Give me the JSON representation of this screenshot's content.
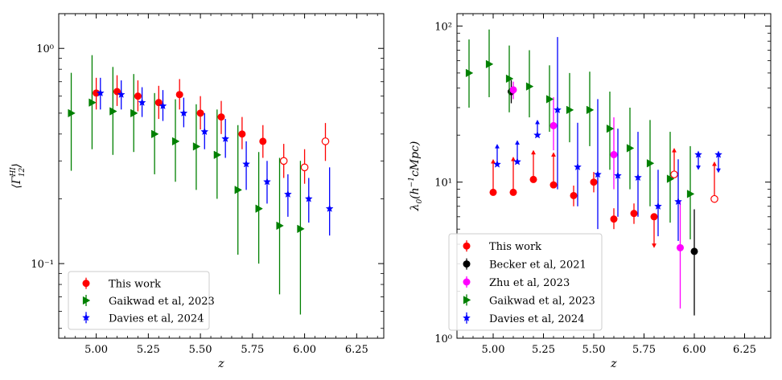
{
  "chart_data": [
    {
      "type": "scatter",
      "panel": "left",
      "title": "",
      "xlabel": "z",
      "ylabel": "⟨Γ₁₂ᴴᴵ⟩",
      "ylabel_parts": {
        "base": "⟨Γ",
        "sup": "HI",
        "sub": "12",
        "close": "⟩"
      },
      "x_scale": "linear",
      "y_scale": "log",
      "xlim": [
        4.82,
        6.38
      ],
      "ylim": [
        0.045,
        1.45
      ],
      "xticks": [
        5.0,
        5.25,
        5.5,
        5.75,
        6.0,
        6.25
      ],
      "xtick_labels": [
        "5.00",
        "5.25",
        "5.50",
        "5.75",
        "6.00",
        "6.25"
      ],
      "ytick_values": [
        0.1,
        1.0
      ],
      "ytick_labels": [
        "10⁻¹",
        "10⁰"
      ],
      "legend_position": "bottom-left",
      "grid": false,
      "series": [
        {
          "name": "This work",
          "color": "#ff0000",
          "marker": "circle",
          "points": [
            {
              "x": 5.0,
              "y": 0.62,
              "lo": 0.52,
              "hi": 0.73
            },
            {
              "x": 5.1,
              "y": 0.63,
              "lo": 0.54,
              "hi": 0.75
            },
            {
              "x": 5.2,
              "y": 0.6,
              "lo": 0.51,
              "hi": 0.71
            },
            {
              "x": 5.3,
              "y": 0.56,
              "lo": 0.47,
              "hi": 0.67
            },
            {
              "x": 5.4,
              "y": 0.61,
              "lo": 0.52,
              "hi": 0.72
            },
            {
              "x": 5.5,
              "y": 0.5,
              "lo": 0.42,
              "hi": 0.6
            },
            {
              "x": 5.6,
              "y": 0.48,
              "lo": 0.4,
              "hi": 0.57
            },
            {
              "x": 5.7,
              "y": 0.4,
              "lo": 0.34,
              "hi": 0.48
            },
            {
              "x": 5.8,
              "y": 0.37,
              "lo": 0.31,
              "hi": 0.44
            },
            {
              "x": 5.9,
              "y": 0.3,
              "lo": 0.25,
              "hi": 0.36,
              "open": true
            },
            {
              "x": 6.0,
              "y": 0.28,
              "lo": 0.235,
              "hi": 0.34,
              "open": true
            },
            {
              "x": 6.1,
              "y": 0.37,
              "lo": 0.3,
              "hi": 0.45,
              "open": true
            }
          ]
        },
        {
          "name": "Gaikwad et al, 2023",
          "color": "#008000",
          "marker": "triangle-right",
          "points": [
            {
              "x": 4.88,
              "y": 0.5,
              "lo": 0.27,
              "hi": 0.77
            },
            {
              "x": 4.98,
              "y": 0.56,
              "lo": 0.34,
              "hi": 0.93
            },
            {
              "x": 5.08,
              "y": 0.51,
              "lo": 0.32,
              "hi": 0.82
            },
            {
              "x": 5.18,
              "y": 0.5,
              "lo": 0.33,
              "hi": 0.76
            },
            {
              "x": 5.28,
              "y": 0.4,
              "lo": 0.26,
              "hi": 0.62
            },
            {
              "x": 5.38,
              "y": 0.37,
              "lo": 0.24,
              "hi": 0.58
            },
            {
              "x": 5.48,
              "y": 0.35,
              "lo": 0.22,
              "hi": 0.55
            },
            {
              "x": 5.58,
              "y": 0.32,
              "lo": 0.2,
              "hi": 0.52
            },
            {
              "x": 5.68,
              "y": 0.22,
              "lo": 0.11,
              "hi": 0.44
            },
            {
              "x": 5.78,
              "y": 0.18,
              "lo": 0.1,
              "hi": 0.33
            },
            {
              "x": 5.88,
              "y": 0.15,
              "lo": 0.072,
              "hi": 0.31
            },
            {
              "x": 5.98,
              "y": 0.145,
              "lo": 0.058,
              "hi": 0.3
            }
          ]
        },
        {
          "name": "Davies et al, 2024",
          "color": "#0000ff",
          "marker": "star",
          "points": [
            {
              "x": 5.02,
              "y": 0.62,
              "lo": 0.52,
              "hi": 0.73
            },
            {
              "x": 5.12,
              "y": 0.61,
              "lo": 0.52,
              "hi": 0.71
            },
            {
              "x": 5.22,
              "y": 0.56,
              "lo": 0.48,
              "hi": 0.66
            },
            {
              "x": 5.32,
              "y": 0.54,
              "lo": 0.46,
              "hi": 0.64
            },
            {
              "x": 5.42,
              "y": 0.5,
              "lo": 0.43,
              "hi": 0.59
            },
            {
              "x": 5.52,
              "y": 0.41,
              "lo": 0.34,
              "hi": 0.5
            },
            {
              "x": 5.62,
              "y": 0.38,
              "lo": 0.31,
              "hi": 0.47
            },
            {
              "x": 5.72,
              "y": 0.29,
              "lo": 0.22,
              "hi": 0.37
            },
            {
              "x": 5.82,
              "y": 0.24,
              "lo": 0.19,
              "hi": 0.3
            },
            {
              "x": 5.92,
              "y": 0.21,
              "lo": 0.165,
              "hi": 0.26
            },
            {
              "x": 6.02,
              "y": 0.2,
              "lo": 0.155,
              "hi": 0.25
            },
            {
              "x": 6.12,
              "y": 0.18,
              "lo": 0.135,
              "hi": 0.28
            }
          ]
        }
      ]
    },
    {
      "type": "scatter",
      "panel": "right",
      "title": "",
      "xlabel": "z",
      "ylabel": "λ₀(h⁻¹cMpc)",
      "ylabel_parts": {
        "base": "λ",
        "sub": "0",
        "rest": "(h",
        "sup": "−1",
        "tail": "cMpc)"
      },
      "x_scale": "linear",
      "y_scale": "log",
      "xlim": [
        4.82,
        6.38
      ],
      "ylim": [
        1.0,
        120
      ],
      "xticks": [
        5.0,
        5.25,
        5.5,
        5.75,
        6.0,
        6.25
      ],
      "xtick_labels": [
        "5.00",
        "5.25",
        "5.50",
        "5.75",
        "6.00",
        "6.25"
      ],
      "ytick_values": [
        1,
        10,
        100
      ],
      "ytick_labels": [
        "10⁰",
        "10¹",
        "10²"
      ],
      "legend_position": "bottom-left",
      "grid": false,
      "series": [
        {
          "name": "This work",
          "color": "#ff0000",
          "marker": "circle",
          "points": [
            {
              "x": 5.0,
              "y": 8.6,
              "limit": "lower",
              "arrow_to": 14
            },
            {
              "x": 5.1,
              "y": 8.6,
              "limit": "lower",
              "arrow_to": 14.5
            },
            {
              "x": 5.2,
              "y": 10.4,
              "limit": "lower",
              "arrow_to": 16
            },
            {
              "x": 5.3,
              "y": 9.6,
              "limit": "lower",
              "arrow_to": 15.5
            },
            {
              "x": 5.4,
              "y": 8.2,
              "lo": 7.0,
              "hi": 9.5
            },
            {
              "x": 5.5,
              "y": 10.0,
              "lo": 8.6,
              "hi": 11.6
            },
            {
              "x": 5.6,
              "y": 5.8,
              "lo": 5.0,
              "hi": 6.8
            },
            {
              "x": 5.7,
              "y": 6.3,
              "lo": 5.4,
              "hi": 7.3
            },
            {
              "x": 5.8,
              "y": 6.0,
              "limit": "upper",
              "arrow_to": 3.8
            },
            {
              "x": 5.9,
              "y": 11.2,
              "limit": "lower",
              "arrow_to": 16.5,
              "open": true
            },
            {
              "x": 6.1,
              "y": 7.8,
              "limit": "lower",
              "arrow_to": 13.5,
              "open": true
            }
          ]
        },
        {
          "name": "Becker et al, 2021",
          "color": "#000000",
          "marker": "circle",
          "points": [
            {
              "x": 5.09,
              "y": 38.0,
              "lo": 32.0,
              "hi": 45.0
            },
            {
              "x": 6.0,
              "y": 3.6,
              "lo": 1.4,
              "hi": 6.7
            }
          ]
        },
        {
          "name": "Zhu et al, 2023",
          "color": "#ff00ff",
          "marker": "circle",
          "points": [
            {
              "x": 5.1,
              "y": 39.0,
              "lo": 34.0,
              "hi": 44.0
            },
            {
              "x": 5.3,
              "y": 23.0,
              "lo": 16.0,
              "hi": 35.0
            },
            {
              "x": 5.6,
              "y": 15.0,
              "lo": 9.0,
              "hi": 26.0
            },
            {
              "x": 5.93,
              "y": 3.8,
              "lo": 1.55,
              "hi": 7.5
            }
          ]
        },
        {
          "name": "Gaikwad et al, 2023",
          "color": "#008000",
          "marker": "triangle-right",
          "points": [
            {
              "x": 4.88,
              "y": 50.0,
              "lo": 30.0,
              "hi": 82.0
            },
            {
              "x": 4.98,
              "y": 57.0,
              "lo": 35.0,
              "hi": 95.0
            },
            {
              "x": 5.08,
              "y": 46.0,
              "lo": 28.0,
              "hi": 75.0
            },
            {
              "x": 5.18,
              "y": 41.0,
              "lo": 26.0,
              "hi": 70.0
            },
            {
              "x": 5.28,
              "y": 34.0,
              "lo": 21.0,
              "hi": 56.0
            },
            {
              "x": 5.38,
              "y": 29.0,
              "lo": 18.0,
              "hi": 50.0
            },
            {
              "x": 5.48,
              "y": 29.0,
              "lo": 17.0,
              "hi": 51.0
            },
            {
              "x": 5.58,
              "y": 22.0,
              "lo": 12.0,
              "hi": 38.0
            },
            {
              "x": 5.68,
              "y": 16.5,
              "lo": 9.0,
              "hi": 30.0
            },
            {
              "x": 5.78,
              "y": 13.2,
              "lo": 7.0,
              "hi": 25.0
            },
            {
              "x": 5.88,
              "y": 10.5,
              "lo": 5.5,
              "hi": 21.0
            },
            {
              "x": 5.98,
              "y": 8.4,
              "lo": 4.3,
              "hi": 17.0
            }
          ]
        },
        {
          "name": "Davies et al, 2024",
          "color": "#0000ff",
          "marker": "star",
          "points": [
            {
              "x": 5.02,
              "y": 13.0,
              "limit": "lower",
              "arrow_to": 17.5
            },
            {
              "x": 5.12,
              "y": 13.5,
              "limit": "lower",
              "arrow_to": 18.5
            },
            {
              "x": 5.22,
              "y": 20.0,
              "limit": "lower",
              "arrow_to": 25.0
            },
            {
              "x": 5.32,
              "y": 29.0,
              "lo": 9.0,
              "hi": 85.0
            },
            {
              "x": 5.42,
              "y": 12.5,
              "lo": 7.0,
              "hi": 24.0
            },
            {
              "x": 5.52,
              "y": 11.2,
              "lo": 5.0,
              "hi": 34.0
            },
            {
              "x": 5.62,
              "y": 11.0,
              "lo": 6.0,
              "hi": 22.0
            },
            {
              "x": 5.72,
              "y": 10.7,
              "lo": 6.0,
              "hi": 21.0
            },
            {
              "x": 5.82,
              "y": 7.0,
              "lo": 4.5,
              "hi": 12.0
            },
            {
              "x": 5.92,
              "y": 7.5,
              "lo": 4.2,
              "hi": 14.0
            },
            {
              "x": 6.02,
              "y": 12.0,
              "limit": "upper_marker_top",
              "marker_y": 15.0,
              "arrow_to": 12.0
            },
            {
              "x": 6.12,
              "y": 12.0,
              "limit": "upper_marker_top",
              "marker_y": 15.0,
              "arrow_to": 11.5
            }
          ]
        }
      ]
    }
  ]
}
